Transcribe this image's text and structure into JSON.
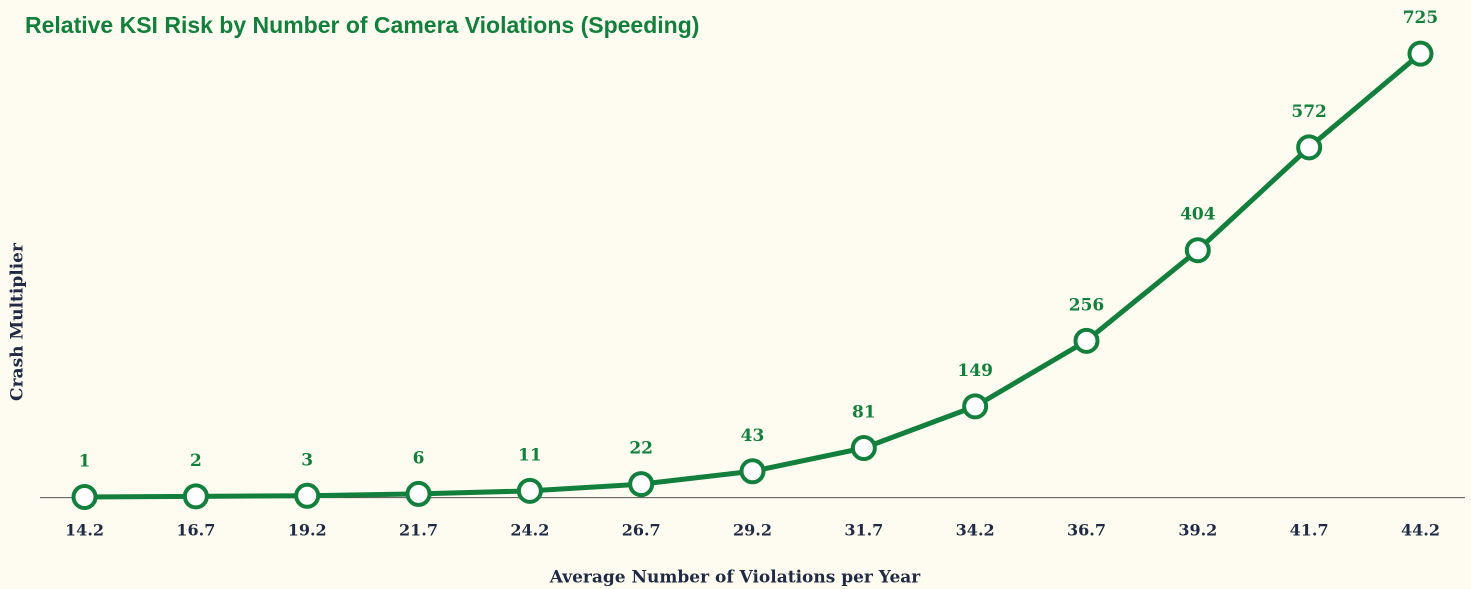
{
  "chart_data": {
    "type": "line",
    "title": "Relative KSI Risk by Number of Camera Violations (Speeding)",
    "x_label": "Average Number of Violations per Year",
    "y_label": "Crash Multiplier",
    "x": [
      14.2,
      16.7,
      19.2,
      21.7,
      24.2,
      26.7,
      29.2,
      31.7,
      34.2,
      36.7,
      39.2,
      41.7,
      44.2
    ],
    "xlim": [
      13.2,
      45.2
    ],
    "xticks": [
      14.2,
      16.7,
      19.2,
      21.7,
      24.2,
      26.7,
      29.2,
      31.7,
      34.2,
      36.7,
      39.2,
      41.7,
      44.2
    ],
    "ylim": [
      0,
      780
    ],
    "series": [
      {
        "name": "Crash Multiplier",
        "color": "#12803c",
        "values": [
          1,
          2,
          3,
          6,
          11,
          22,
          43,
          81,
          149,
          256,
          404,
          572,
          725
        ]
      }
    ],
    "grid": false
  }
}
